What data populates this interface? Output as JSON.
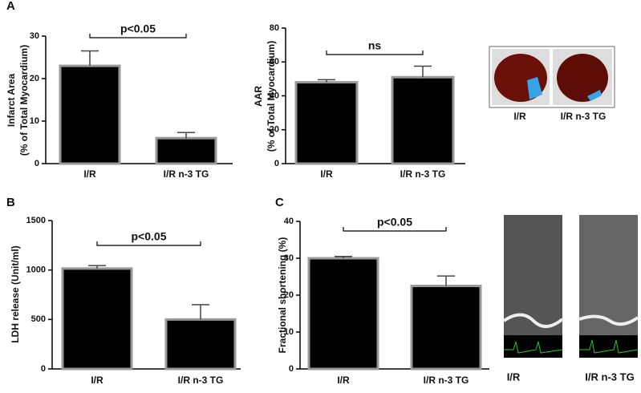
{
  "chart_data": [
    {
      "type": "bar",
      "panel": "A",
      "ylabel": [
        "Infarct Area",
        "(% of Total Myocardium)"
      ],
      "categories": [
        "I/R",
        "I/R n-3 TG"
      ],
      "values": [
        23,
        6
      ],
      "errors": [
        3.5,
        1.3
      ],
      "color": "#000000",
      "edgecolor": "#999999",
      "ylim": [
        0,
        30
      ],
      "yticks": [
        0,
        10,
        20,
        30
      ],
      "annotation": "p<0.05"
    },
    {
      "type": "bar",
      "ylabel": [
        "AAR",
        "(% of Total Myocardium)"
      ],
      "categories": [
        "I/R",
        "I/R n-3 TG"
      ],
      "values": [
        48,
        51
      ],
      "errors": [
        1.5,
        6.5
      ],
      "color": "#000000",
      "edgecolor": "#999999",
      "ylim": [
        0,
        80
      ],
      "yticks": [
        0,
        20,
        40,
        60,
        80
      ],
      "annotation": "ns"
    },
    {
      "type": "bar",
      "panel": "B",
      "ylabel": [
        "LDH release (Unit/ml)"
      ],
      "categories": [
        "I/R",
        "I/R n-3 TG"
      ],
      "values": [
        1015,
        500
      ],
      "errors": [
        30,
        150
      ],
      "color": "#000000",
      "edgecolor": "#999999",
      "ylim": [
        0,
        1500
      ],
      "yticks": [
        0,
        500,
        1000,
        1500
      ],
      "annotation": "p<0.05"
    },
    {
      "type": "bar",
      "panel": "C",
      "ylabel": [
        "Fractional shortening (%)"
      ],
      "categories": [
        "I/R",
        "I/R n-3 TG"
      ],
      "values": [
        30,
        22.5
      ],
      "errors": [
        0.5,
        2.7
      ],
      "color": "#000000",
      "edgecolor": "#999999",
      "ylim": [
        0,
        40
      ],
      "yticks": [
        0,
        10,
        20,
        30,
        40
      ],
      "annotation": "p<0.05"
    }
  ],
  "images": [
    {
      "labels": [
        "I/R",
        "I/R n-3 TG"
      ]
    },
    {
      "labels": [
        "I/R",
        "I/R n-3 TG"
      ]
    }
  ]
}
